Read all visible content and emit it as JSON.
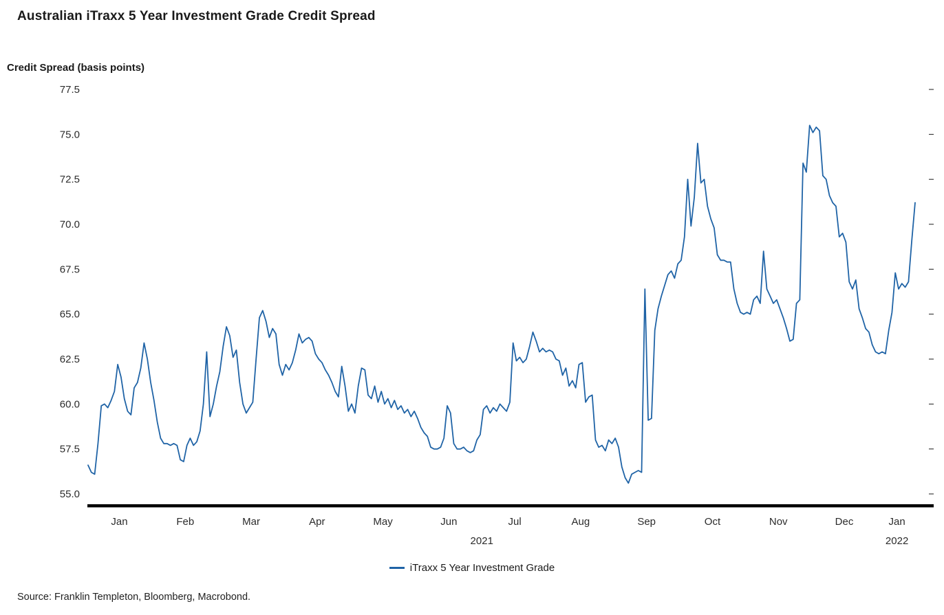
{
  "title": "Australian iTraxx 5 Year Investment Grade Credit Spread",
  "source": "Source: Franklin Templeton, Bloomberg, Macrobond.",
  "chart_data": {
    "type": "line",
    "title": "Australian iTraxx 5 Year Investment Grade Credit Spread",
    "ylabel": "Credit Spread (basis points)",
    "xlabel": "",
    "ylim": [
      55.0,
      77.5
    ],
    "y_tick_step": 2.5,
    "y_tick_labels": [
      "55.0",
      "57.5",
      "60.0",
      "62.5",
      "65.0",
      "67.5",
      "70.0",
      "72.5",
      "75.0",
      "77.5"
    ],
    "grid": false,
    "legend_position": "bottom-center",
    "background": "#ffffff",
    "x_months": [
      {
        "label": "Jan",
        "year": "2021",
        "points": 20
      },
      {
        "label": "Feb",
        "year": "2021",
        "points": 20
      },
      {
        "label": "Mar",
        "year": "2021",
        "points": 20
      },
      {
        "label": "Apr",
        "year": "2021",
        "points": 20
      },
      {
        "label": "May",
        "year": "2021",
        "points": 20
      },
      {
        "label": "Jun",
        "year": "2021",
        "points": 20
      },
      {
        "label": "Jul",
        "year": "2021",
        "points": 20
      },
      {
        "label": "Aug",
        "year": "2021",
        "points": 20
      },
      {
        "label": "Sep",
        "year": "2021",
        "points": 20
      },
      {
        "label": "Oct",
        "year": "2021",
        "points": 20
      },
      {
        "label": "Nov",
        "year": "2021",
        "points": 20
      },
      {
        "label": "Dec",
        "year": "2021",
        "points": 20
      },
      {
        "label": "Jan",
        "year": "2022",
        "points": 12
      }
    ],
    "year_labels": [
      "2021",
      "2022"
    ],
    "series": [
      {
        "name": "iTraxx 5 Year Investment Grade",
        "color": "#1f63a6",
        "values": [
          56.6,
          56.2,
          56.1,
          57.8,
          59.9,
          60.0,
          59.8,
          60.2,
          60.7,
          62.2,
          61.5,
          60.3,
          59.6,
          59.4,
          60.9,
          61.2,
          62.0,
          63.4,
          62.5,
          61.2,
          60.2,
          59.0,
          58.1,
          57.8,
          57.8,
          57.7,
          57.8,
          57.7,
          56.9,
          56.8,
          57.7,
          58.1,
          57.7,
          57.9,
          58.5,
          60.0,
          62.9,
          59.3,
          60.0,
          61.0,
          61.8,
          63.2,
          64.3,
          63.8,
          62.6,
          63.0,
          61.2,
          60.0,
          59.5,
          59.8,
          60.1,
          62.5,
          64.8,
          65.2,
          64.6,
          63.7,
          64.2,
          63.9,
          62.2,
          61.6,
          62.2,
          61.9,
          62.3,
          63.0,
          63.9,
          63.4,
          63.6,
          63.7,
          63.5,
          62.8,
          62.5,
          62.3,
          61.9,
          61.6,
          61.2,
          60.7,
          60.4,
          62.1,
          61.0,
          59.6,
          60.0,
          59.5,
          61.0,
          62.0,
          61.9,
          60.5,
          60.3,
          61.0,
          60.1,
          60.7,
          60.0,
          60.3,
          59.8,
          60.2,
          59.7,
          59.9,
          59.5,
          59.7,
          59.3,
          59.6,
          59.2,
          58.7,
          58.4,
          58.2,
          57.6,
          57.5,
          57.5,
          57.6,
          58.1,
          59.9,
          59.5,
          57.8,
          57.5,
          57.5,
          57.6,
          57.4,
          57.3,
          57.4,
          58.0,
          58.3,
          59.7,
          59.9,
          59.5,
          59.8,
          59.6,
          60.0,
          59.8,
          59.6,
          60.1,
          63.4,
          62.4,
          62.6,
          62.3,
          62.5,
          63.2,
          64.0,
          63.5,
          62.9,
          63.1,
          62.9,
          63.0,
          62.9,
          62.5,
          62.4,
          61.6,
          62.0,
          61.0,
          61.3,
          60.9,
          62.2,
          62.3,
          60.1,
          60.4,
          60.5,
          58.0,
          57.6,
          57.7,
          57.4,
          58.0,
          57.8,
          58.1,
          57.6,
          56.5,
          55.9,
          55.6,
          56.1,
          56.2,
          56.3,
          56.2,
          66.4,
          59.1,
          59.2,
          64.1,
          65.3,
          66.0,
          66.6,
          67.2,
          67.4,
          67.0,
          67.8,
          68.0,
          69.3,
          72.5,
          69.9,
          71.5,
          74.5,
          72.3,
          72.5,
          71.0,
          70.3,
          69.8,
          68.3,
          68.0,
          68.0,
          67.9,
          67.9,
          66.4,
          65.6,
          65.1,
          65.0,
          65.1,
          65.0,
          65.8,
          66.0,
          65.6,
          68.5,
          66.4,
          66.0,
          65.6,
          65.8,
          65.3,
          64.8,
          64.2,
          63.5,
          63.6,
          65.6,
          65.8,
          73.4,
          72.9,
          75.5,
          75.1,
          75.4,
          75.2,
          72.7,
          72.5,
          71.6,
          71.2,
          71.0,
          69.3,
          69.5,
          69.0,
          66.8,
          66.4,
          66.9,
          65.3,
          64.8,
          64.2,
          64.0,
          63.3,
          62.9,
          62.8,
          62.9,
          62.8,
          64.1,
          65.1,
          67.3,
          66.4,
          66.7,
          66.5,
          66.8,
          69.1,
          71.2
        ]
      }
    ]
  }
}
